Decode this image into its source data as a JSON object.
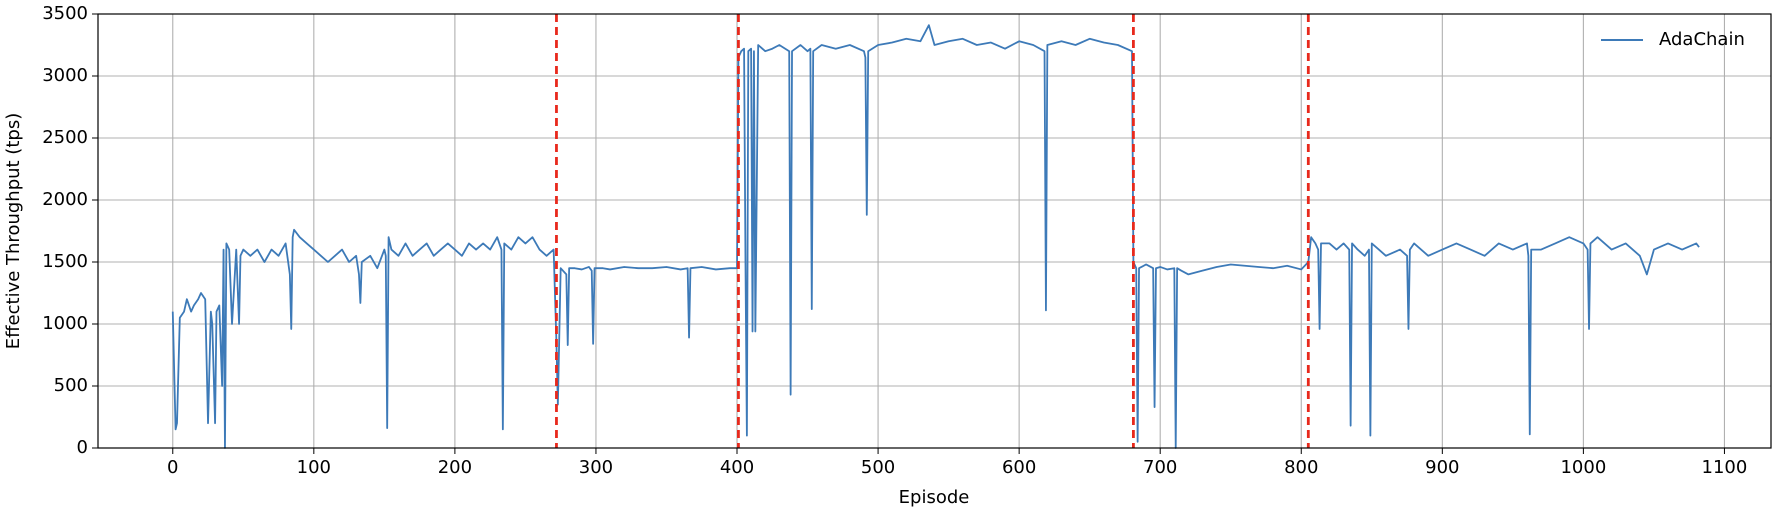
{
  "chart_data": {
    "type": "line",
    "x_label": "Episode",
    "y_label": "Effective Throughput (tps)",
    "xlim": [
      -53,
      1133
    ],
    "ylim": [
      0,
      3500
    ],
    "xticks": [
      0,
      100,
      200,
      300,
      400,
      500,
      600,
      700,
      800,
      900,
      1000,
      1100
    ],
    "yticks": [
      0,
      500,
      1000,
      1500,
      2000,
      2500,
      3000,
      3500
    ],
    "grid": true,
    "legend_position": "upper right",
    "vlines": [
      272,
      401,
      681,
      805
    ],
    "vline_color": "#e8291c",
    "x": [
      0,
      2,
      3,
      5,
      8,
      10,
      13,
      15,
      18,
      20,
      23,
      25,
      27,
      28,
      30,
      31,
      33,
      35,
      36,
      37,
      38,
      40,
      42,
      45,
      47,
      48,
      50,
      55,
      60,
      65,
      70,
      75,
      80,
      83,
      84,
      85,
      86,
      90,
      95,
      100,
      105,
      110,
      115,
      120,
      125,
      130,
      132,
      133,
      134,
      140,
      145,
      150,
      151,
      152,
      153,
      155,
      160,
      165,
      170,
      175,
      180,
      185,
      190,
      195,
      200,
      205,
      210,
      215,
      220,
      225,
      230,
      233,
      234,
      235,
      240,
      245,
      250,
      255,
      260,
      265,
      270,
      272,
      273,
      275,
      279,
      280,
      281,
      285,
      290,
      295,
      297,
      298,
      299,
      305,
      310,
      320,
      330,
      340,
      350,
      360,
      365,
      366,
      367,
      375,
      385,
      395,
      400,
      401,
      403,
      405,
      406,
      407,
      408,
      410,
      411,
      412,
      413,
      415,
      420,
      425,
      430,
      437,
      438,
      439,
      445,
      450,
      452,
      453,
      454,
      460,
      470,
      480,
      490,
      491,
      492,
      493,
      500,
      510,
      520,
      530,
      536,
      540,
      550,
      560,
      570,
      580,
      590,
      600,
      610,
      618,
      619,
      620,
      630,
      640,
      650,
      660,
      670,
      680,
      681,
      683,
      684,
      685,
      690,
      695,
      696,
      697,
      700,
      705,
      710,
      711,
      712,
      715,
      720,
      730,
      740,
      750,
      760,
      770,
      780,
      790,
      800,
      805,
      807,
      810,
      812,
      813,
      814,
      820,
      825,
      830,
      834,
      835,
      836,
      840,
      845,
      848,
      849,
      850,
      855,
      860,
      870,
      875,
      876,
      877,
      880,
      890,
      900,
      910,
      920,
      930,
      940,
      950,
      960,
      961,
      962,
      963,
      970,
      980,
      990,
      1000,
      1003,
      1004,
      1005,
      1010,
      1020,
      1030,
      1040,
      1045,
      1050,
      1060,
      1070,
      1080,
      1082
    ],
    "series": [
      {
        "name": "AdaChain",
        "color": "#3d7ab8",
        "values": [
          1100,
          150,
          200,
          1050,
          1100,
          1200,
          1100,
          1150,
          1200,
          1250,
          1200,
          200,
          1100,
          1000,
          200,
          1100,
          1150,
          500,
          1600,
          0,
          1650,
          1600,
          1000,
          1600,
          1000,
          1550,
          1600,
          1550,
          1600,
          1500,
          1600,
          1550,
          1650,
          1400,
          960,
          1700,
          1760,
          1700,
          1650,
          1600,
          1550,
          1500,
          1550,
          1600,
          1500,
          1550,
          1400,
          1170,
          1500,
          1550,
          1450,
          1600,
          1550,
          160,
          1700,
          1600,
          1550,
          1650,
          1550,
          1600,
          1650,
          1550,
          1600,
          1650,
          1600,
          1550,
          1650,
          1600,
          1650,
          1600,
          1700,
          1600,
          150,
          1650,
          1600,
          1700,
          1650,
          1700,
          1600,
          1550,
          1600,
          850,
          350,
          1450,
          1400,
          830,
          1450,
          1450,
          1440,
          1460,
          1430,
          840,
          1450,
          1450,
          1440,
          1460,
          1450,
          1450,
          1460,
          1440,
          1450,
          890,
          1450,
          1460,
          1440,
          1450,
          1450,
          3150,
          3200,
          3220,
          1500,
          100,
          3200,
          3220,
          940,
          3200,
          940,
          3250,
          3200,
          3220,
          3250,
          3200,
          430,
          3200,
          3250,
          3200,
          3220,
          1120,
          3200,
          3250,
          3220,
          3250,
          3200,
          3150,
          1880,
          3200,
          3250,
          3270,
          3300,
          3280,
          3410,
          3250,
          3280,
          3300,
          3250,
          3270,
          3220,
          3280,
          3250,
          3200,
          1110,
          3250,
          3280,
          3250,
          3300,
          3270,
          3250,
          3200,
          1500,
          1450,
          50,
          1450,
          1480,
          1450,
          330,
          1450,
          1460,
          1440,
          1450,
          0,
          1450,
          1430,
          1400,
          1430,
          1460,
          1480,
          1470,
          1460,
          1450,
          1470,
          1440,
          1500,
          1700,
          1650,
          1600,
          960,
          1650,
          1650,
          1600,
          1650,
          1600,
          180,
          1650,
          1600,
          1550,
          1600,
          100,
          1650,
          1600,
          1550,
          1600,
          1550,
          960,
          1600,
          1650,
          1550,
          1600,
          1650,
          1600,
          1550,
          1650,
          1600,
          1650,
          1550,
          110,
          1600,
          1600,
          1650,
          1700,
          1650,
          1600,
          960,
          1650,
          1700,
          1600,
          1650,
          1550,
          1400,
          1600,
          1650,
          1600,
          1650,
          1620
        ]
      }
    ]
  }
}
